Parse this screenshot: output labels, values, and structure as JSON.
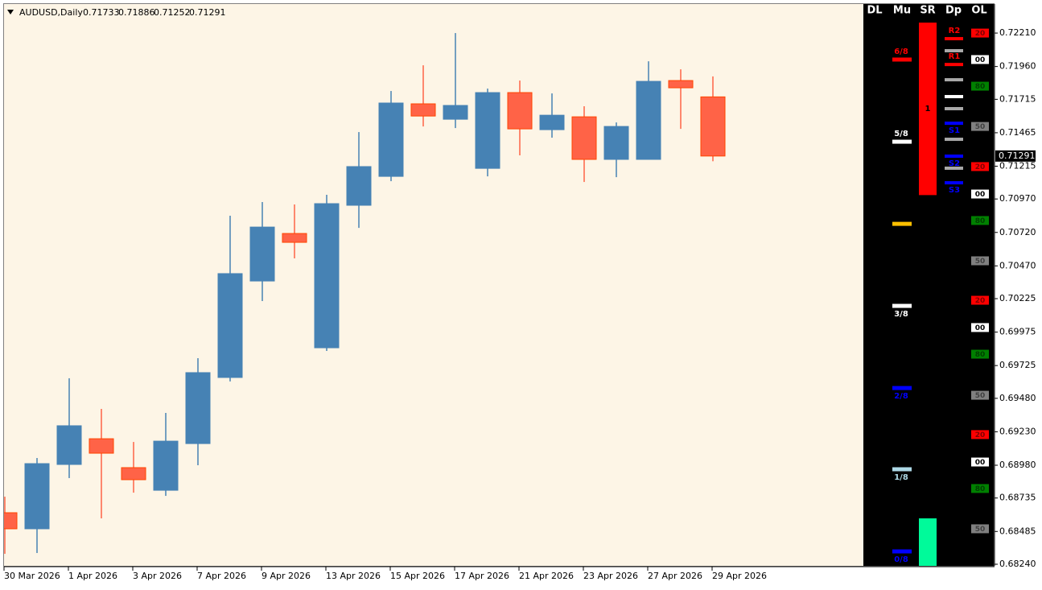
{
  "chart_data": {
    "type": "candlestick",
    "title": "AUDUSD,Daily",
    "up_color": "#4682b4",
    "down_color": "#ff6347",
    "categories": [
      "30 Mar 2026",
      null,
      "1 Apr 2026",
      null,
      "3 Apr 2026",
      null,
      "7 Apr 2026",
      null,
      "9 Apr 2026",
      null,
      "13 Apr 2026",
      null,
      "15 Apr 2026",
      null,
      "17 Apr 2026",
      null,
      "21 Apr 2026",
      null,
      "23 Apr 2026",
      null,
      "27 Apr 2026",
      null,
      "29 Apr 2026"
    ],
    "open": [
      0.68625,
      0.68505,
      0.68986,
      0.69178,
      0.68962,
      0.68793,
      0.69142,
      0.69636,
      0.70357,
      0.70712,
      0.69858,
      0.70923,
      0.71139,
      0.71681,
      0.71566,
      0.71199,
      0.71765,
      0.71488,
      0.71584,
      0.71266,
      0.71266,
      0.71855,
      0.71733
    ],
    "high": [
      0.68745,
      0.69034,
      0.6963,
      0.69401,
      0.69154,
      0.69371,
      0.6978,
      0.70845,
      0.70947,
      0.70929,
      0.71001,
      0.7147,
      0.71777,
      0.71969,
      0.7221,
      0.71795,
      0.71855,
      0.71759,
      0.71663,
      0.71542,
      0.71999,
      0.71939,
      0.71886
    ],
    "low": [
      0.68318,
      0.68324,
      0.68884,
      0.68583,
      0.68775,
      0.68751,
      0.6898,
      0.69606,
      0.70207,
      0.70526,
      0.69834,
      0.70754,
      0.71103,
      0.71512,
      0.715,
      0.71139,
      0.71296,
      0.71428,
      0.71097,
      0.71133,
      0.71266,
      0.71494,
      0.71252
    ],
    "close": [
      0.68505,
      0.68992,
      0.69275,
      0.6907,
      0.68872,
      0.6916,
      0.69672,
      0.70412,
      0.7076,
      0.70646,
      0.70935,
      0.71212,
      0.71687,
      0.7159,
      0.71669,
      0.71765,
      0.71494,
      0.71596,
      0.71266,
      0.71512,
      0.71849,
      0.71801,
      0.71291
    ],
    "ylim": [
      0.68228,
      0.72427
    ],
    "yticks": [
      {
        "value": 0.7221,
        "label": "0.72210"
      },
      {
        "value": 0.7196,
        "label": "0.71960"
      },
      {
        "value": 0.71715,
        "label": "0.71715"
      },
      {
        "value": 0.71465,
        "label": "0.71465"
      },
      {
        "value": 0.71215,
        "label": "0.71215"
      },
      {
        "value": 0.7097,
        "label": "0.70970"
      },
      {
        "value": 0.7072,
        "label": "0.70720"
      },
      {
        "value": 0.7047,
        "label": "0.70470"
      },
      {
        "value": 0.70225,
        "label": "0.70225"
      },
      {
        "value": 0.69975,
        "label": "0.69975"
      },
      {
        "value": 0.69725,
        "label": "0.69725"
      },
      {
        "value": 0.6948,
        "label": "0.69480"
      },
      {
        "value": 0.6923,
        "label": "0.69230"
      },
      {
        "value": 0.6898,
        "label": "0.68980"
      },
      {
        "value": 0.68735,
        "label": "0.68735"
      },
      {
        "value": 0.68485,
        "label": "0.68485"
      },
      {
        "value": 0.6824,
        "label": "0.68240"
      }
    ],
    "indicator": {
      "headers": [
        "DL",
        "Mu",
        "SR",
        "Dp",
        "OL"
      ],
      "murray": [
        {
          "label": "6/8",
          "price": 0.72012,
          "color": "#ff0000"
        },
        {
          "label": "5/8",
          "price": 0.71398,
          "color": "#ffffff"
        },
        {
          "price": 0.70784,
          "color": "#ffc000"
        },
        {
          "label": "3/8",
          "price": 0.70171,
          "color": "#ffffff"
        },
        {
          "label": "2/8",
          "price": 0.69557,
          "color": "#0000ff"
        },
        {
          "label": "1/8",
          "price": 0.6895,
          "color": "#add8e6"
        },
        {
          "label": "0/8",
          "price": 0.68336,
          "color": "#0000ff"
        }
      ],
      "zones": [
        {
          "label": "1",
          "top": 0.72288,
          "bottom": 0.70999,
          "color": "#ff0000"
        },
        {
          "top": 0.68583,
          "bottom": 0.68228,
          "color": "#00fa9a"
        }
      ],
      "pivots": [
        {
          "label": "R2",
          "price": 0.72168,
          "color": "#ff0000"
        },
        {
          "price": 0.72078,
          "color": "#a9a9a9"
        },
        {
          "label": "R1",
          "price": 0.71975,
          "color": "#ff0000"
        },
        {
          "price": 0.71861,
          "color": "#a9a9a9"
        },
        {
          "price": 0.71735,
          "color": "#ffffff"
        },
        {
          "price": 0.71645,
          "color": "#a9a9a9"
        },
        {
          "label": "S1",
          "price": 0.71536,
          "color": "#0000ff"
        },
        {
          "price": 0.71416,
          "color": "#a9a9a9"
        },
        {
          "label": "S2",
          "price": 0.7129,
          "color": "#0000ff"
        },
        {
          "price": 0.712,
          "color": "#a9a9a9"
        },
        {
          "label": "S3",
          "price": 0.71091,
          "color": "#0000ff"
        }
      ],
      "ol": [
        {
          "label": "20",
          "price": 0.7221,
          "color": "#ff0000"
        },
        {
          "label": "00",
          "price": 0.72012,
          "color": "#ffffff"
        },
        {
          "label": "80",
          "price": 0.71813,
          "color": "#008000"
        },
        {
          "label": "50",
          "price": 0.71512,
          "color": "#808080"
        },
        {
          "label": "20",
          "price": 0.71212,
          "color": "#ff0000"
        },
        {
          "label": "00",
          "price": 0.71007,
          "color": "#ffffff"
        },
        {
          "label": "80",
          "price": 0.70809,
          "color": "#008000"
        },
        {
          "label": "50",
          "price": 0.70508,
          "color": "#808080"
        },
        {
          "label": "20",
          "price": 0.70213,
          "color": "#ff0000"
        },
        {
          "label": "00",
          "price": 0.70009,
          "color": "#ffffff"
        },
        {
          "label": "80",
          "price": 0.6981,
          "color": "#008000"
        },
        {
          "label": "50",
          "price": 0.69503,
          "color": "#808080"
        },
        {
          "label": "20",
          "price": 0.69209,
          "color": "#ff0000"
        },
        {
          "label": "00",
          "price": 0.69004,
          "color": "#ffffff"
        },
        {
          "label": "80",
          "price": 0.68806,
          "color": "#008000"
        },
        {
          "label": "50",
          "price": 0.68505,
          "color": "#808080"
        }
      ]
    }
  }
}
